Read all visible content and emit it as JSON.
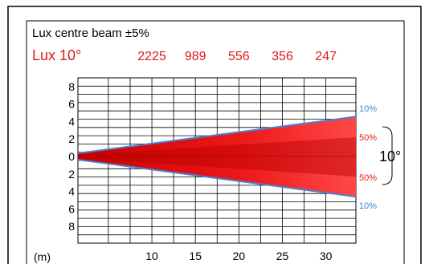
{
  "header": {
    "title": "Lux centre beam ±5%",
    "lux_label": "Lux 10°",
    "lux_values": [
      "2225",
      "989",
      "556",
      "356",
      "247"
    ]
  },
  "beam": {
    "edge_label_top": "10%",
    "inner_label_top": "50%",
    "inner_label_bottom": "50%",
    "edge_label_bottom": "10%",
    "angle_label": "10°"
  },
  "axes": {
    "unit_label": "(m)",
    "x_ticks": [
      10,
      15,
      20,
      25,
      30
    ],
    "y_ticks": [
      "8",
      "6",
      "4",
      "2",
      "0",
      "2",
      "4",
      "6",
      "8"
    ]
  },
  "colors": {
    "beam_dark": "#d40000",
    "beam_light": "#ff4a4a",
    "edge_line": "#4a7fd8",
    "label_red": "#e01818",
    "label_blue": "#2a8ad8"
  }
}
